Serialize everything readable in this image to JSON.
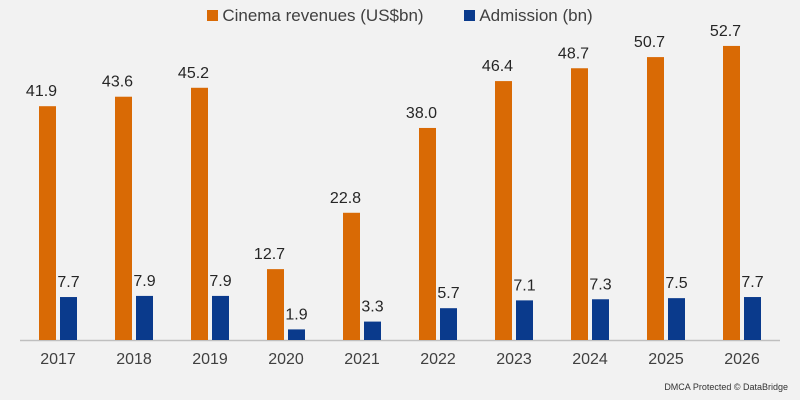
{
  "chart_data": {
    "type": "bar",
    "title": "",
    "xlabel": "",
    "ylabel": "",
    "categories": [
      "2017",
      "2018",
      "2019",
      "2020",
      "2021",
      "2022",
      "2023",
      "2024",
      "2025",
      "2026"
    ],
    "series": [
      {
        "name": "Cinema revenues (US$bn)",
        "color": "#d96a05",
        "values": [
          41.9,
          43.6,
          45.2,
          12.7,
          22.8,
          38.0,
          46.4,
          48.7,
          50.7,
          52.7
        ],
        "labels": [
          "41.9",
          "43.6",
          "45.2",
          "12.7",
          "22.8",
          "38.0",
          "46.4",
          "48.7",
          "50.7",
          "52.7"
        ]
      },
      {
        "name": "Admission (bn)",
        "color": "#0a3a8c",
        "values": [
          7.7,
          7.9,
          7.9,
          1.9,
          3.3,
          5.7,
          7.1,
          7.3,
          7.5,
          7.7
        ],
        "labels": [
          "7.7",
          "7.9",
          "7.9",
          "1.9",
          "3.3",
          "5.7",
          "7.1",
          "7.3",
          "7.5",
          "7.7"
        ]
      }
    ],
    "ylim": [
      0,
      60
    ],
    "grid": false,
    "legend_position": "top-center"
  },
  "footer": "DMCA Protected © DataBridge"
}
